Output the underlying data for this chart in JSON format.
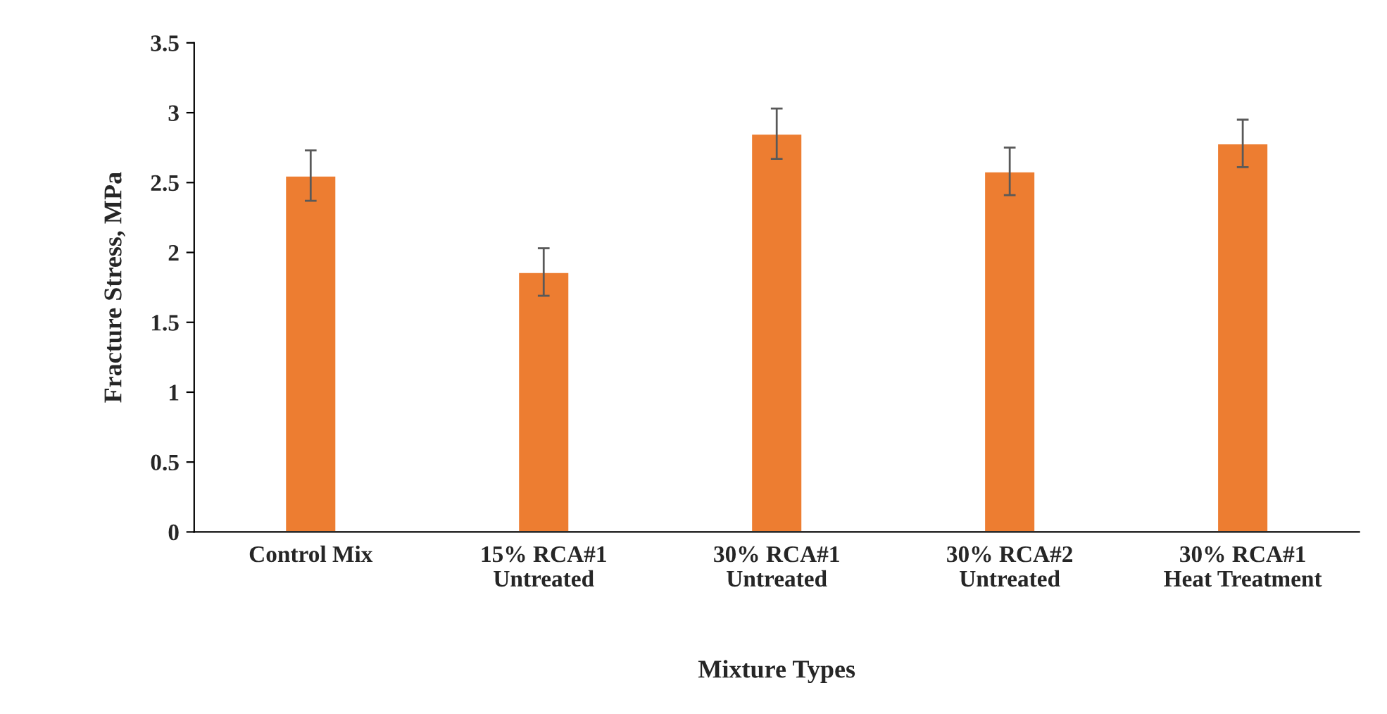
{
  "chart_data": {
    "type": "bar",
    "xlabel": "Mixture Types",
    "ylabel": "Fracture Stress, MPa",
    "categories": [
      "Control Mix",
      "15% RCA#1\nUntreated",
      "30% RCA#1\nUntreated",
      "30% RCA#2\nUntreated",
      "30% RCA#1\nHeat Treatment"
    ],
    "values": [
      2.55,
      1.86,
      2.85,
      2.58,
      2.78
    ],
    "errors": [
      0.18,
      0.17,
      0.18,
      0.17,
      0.17
    ],
    "color": "#ed7d31",
    "ylim": [
      0,
      3.5
    ],
    "yticks": [
      0,
      0.5,
      1,
      1.5,
      2,
      2.5,
      3,
      3.5
    ],
    "grid": false,
    "legend": false
  }
}
